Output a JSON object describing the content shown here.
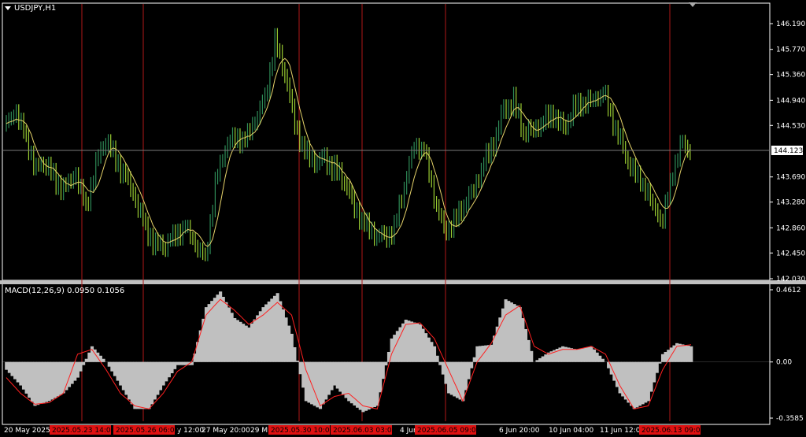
{
  "header": {
    "symbol_label": "USDJPY,H1"
  },
  "macd": {
    "label_prefix": "MACD(12,26,9)",
    "value1": "0.0950",
    "value2": "0.1056",
    "label": "MACD(12,26,9) 0.0950 0.1056"
  },
  "price_axis": {
    "ticks": [
      "146.190",
      "145.770",
      "145.360",
      "144.940",
      "144.530",
      "143.690",
      "143.280",
      "142.860",
      "142.450",
      "142.030"
    ],
    "current_price": "144.123"
  },
  "macd_axis": {
    "ticks": [
      "0.4612",
      "0.00",
      "-0.3585"
    ]
  },
  "time_axis": {
    "labels": [
      "20 May 2025",
      "27 May 20:00",
      "29 M",
      "4 Jun",
      "6 Jun 20:00",
      "10 Jun 04:00",
      "11 Jun 12:00"
    ],
    "partial_label": "y 12:00"
  },
  "event_markers": [
    "2025.05.23 14:00",
    "2025.05.26 06:00",
    "2025.05.30 10:00",
    "2025.06.03 03:00",
    "2025.06.05 09:00",
    "2025.06.13 09:00"
  ],
  "colors": {
    "background": "#000000",
    "bar_up": "#2e8b57",
    "bar_down": "#9acd32",
    "ma_line": "#e6d36a",
    "macd_hist": "#c0c0c0",
    "macd_signal": "#ff2020",
    "event_line": "#b01818",
    "event_label_bg": "#e01010",
    "grid_line": "#7a7a7a"
  },
  "chart_data": {
    "type": "candlestick",
    "symbol": "USDJPY",
    "timeframe": "H1",
    "price_range": [
      142.03,
      146.19
    ],
    "close_path": [
      144.5,
      144.7,
      144.3,
      143.8,
      143.9,
      143.6,
      143.5,
      143.7,
      143.2,
      143.9,
      144.3,
      144.0,
      143.7,
      143.3,
      142.9,
      142.6,
      142.6,
      142.8,
      142.9,
      142.6,
      142.4,
      143.6,
      144.2,
      144.4,
      144.3,
      144.6,
      145.0,
      145.9,
      145.4,
      144.6,
      144.1,
      143.9,
      144.0,
      143.8,
      143.6,
      143.2,
      142.9,
      142.7,
      142.7,
      142.8,
      143.5,
      144.2,
      144.1,
      143.3,
      142.8,
      142.9,
      143.2,
      143.5,
      143.9,
      144.2,
      144.8,
      144.9,
      144.4,
      144.5,
      144.6,
      144.7,
      144.5,
      144.8,
      144.9,
      145.0,
      145.1,
      144.6,
      144.2,
      143.8,
      143.6,
      143.3,
      143.0,
      143.8,
      144.3,
      144.1
    ],
    "macd_range": [
      -0.3585,
      0.4612
    ],
    "macd_hist": [
      -0.05,
      -0.15,
      -0.28,
      -0.25,
      -0.2,
      -0.1,
      0.1,
      0.0,
      -0.15,
      -0.3,
      -0.3,
      -0.15,
      -0.02,
      -0.02,
      0.35,
      0.45,
      0.28,
      0.22,
      0.35,
      0.44,
      0.18,
      -0.25,
      -0.3,
      -0.15,
      -0.25,
      -0.32,
      -0.28,
      0.15,
      0.27,
      0.24,
      0.1,
      -0.2,
      -0.25,
      0.1,
      0.11,
      0.4,
      0.35,
      0.0,
      0.06,
      0.1,
      0.08,
      0.1,
      0.0,
      -0.2,
      -0.3,
      -0.25,
      0.05,
      0.12,
      0.1
    ],
    "macd_signal": [
      -0.1,
      -0.2,
      -0.27,
      -0.26,
      -0.2,
      0.05,
      0.08,
      -0.05,
      -0.2,
      -0.28,
      -0.3,
      -0.2,
      -0.06,
      0.0,
      0.3,
      0.4,
      0.33,
      0.24,
      0.3,
      0.38,
      0.3,
      -0.05,
      -0.28,
      -0.22,
      -0.2,
      -0.28,
      -0.3,
      0.05,
      0.24,
      0.25,
      0.15,
      -0.05,
      -0.25,
      0.0,
      0.12,
      0.3,
      0.36,
      0.1,
      0.05,
      0.08,
      0.08,
      0.1,
      0.05,
      -0.15,
      -0.3,
      -0.28,
      -0.05,
      0.1,
      0.11
    ]
  }
}
